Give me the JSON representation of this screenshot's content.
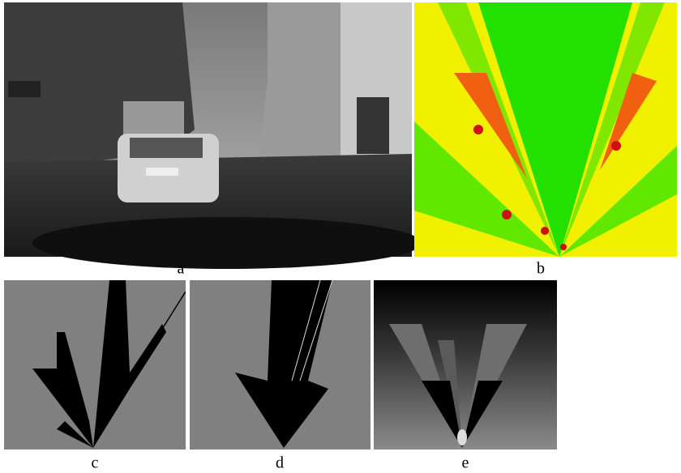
{
  "panels": [
    {
      "label": "a"
    },
    {
      "label": "b"
    },
    {
      "label": "c"
    },
    {
      "label": "d"
    },
    {
      "label": "e"
    }
  ]
}
